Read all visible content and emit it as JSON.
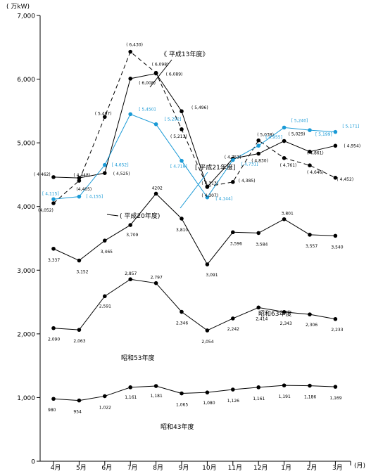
{
  "chart_data": {
    "type": "line",
    "unit_label": "( 万kW)",
    "x_unit": "(月)",
    "categories": [
      "4月",
      "5月",
      "6月",
      "7月",
      "8月",
      "9月",
      "10月",
      "11月",
      "12月",
      "1月",
      "2月",
      "3月"
    ],
    "ylim": [
      0,
      7000
    ],
    "yticks": [
      "0",
      "1,000",
      "2,000",
      "3,000",
      "4,000",
      "5,000",
      "6,000",
      "7,000"
    ],
    "series": [
      {
        "name": "《 平成13年度》",
        "color": "#000000",
        "dash": true,
        "values": [
          4052,
          4405,
          5407,
          6430,
          6098,
          5213,
          4313,
          4385,
          5038,
          4761,
          4646,
          4452
        ],
        "labels": [
          "(4,052)",
          "(4,405)",
          "( 5,407)",
          "( 6,430)",
          "( 6,098)",
          "( 5,213)",
          "( 4,313)",
          "( 4,385)",
          "( 5,038)",
          "( 4,761)",
          "( 4,646)",
          "( 4,452)"
        ]
      },
      {
        "name": "( 平成20年度)",
        "color": "#000000",
        "dash": false,
        "values": [
          4462,
          4448,
          4525,
          6008,
          6089,
          5496,
          4307,
          4753,
          4830,
          5029,
          4861,
          4954
        ],
        "labels": [
          "( 4,462)",
          "( 4,448)",
          "( 4,525)",
          "( 6,008)",
          "( 6,089)",
          "( 5,496)",
          "( 4,307)",
          "( 4,753)",
          "( 4,830)",
          "( 5,029)",
          "( 4,861)",
          "( 4,954)"
        ]
      },
      {
        "name": "[ 平成21年度]",
        "color": "#1a9ad6",
        "dash": false,
        "values": [
          4115,
          4155,
          4652,
          5450,
          5292,
          4718,
          4144,
          4731,
          4955,
          5240,
          5199,
          5171
        ],
        "labels": [
          "[ 4,115]",
          "[ 4,155]",
          "[ 4,652]",
          "[ 5,450]",
          "[ 5,292]",
          "[ 4,718]",
          "[ 4,144]",
          "[ 4,731]",
          "[ 4,955]",
          "[ 5,240]",
          "[ 5,199]",
          "[ 5,171]"
        ]
      },
      {
        "name": "昭和63年度",
        "color": "#000000",
        "dash": false,
        "values": [
          3337,
          3152,
          3465,
          3709,
          4202,
          3810,
          3091,
          3596,
          3584,
          3801,
          3557,
          3540
        ],
        "labels": [
          "3,337",
          "3,152",
          "3,465",
          "3,709",
          "4202",
          "3,810",
          "3,091",
          "3,596",
          "3,584",
          "3,801",
          "3,557",
          "3,540"
        ]
      },
      {
        "name": "昭和53年度",
        "color": "#000000",
        "dash": false,
        "values": [
          2090,
          2063,
          2591,
          2857,
          2797,
          2346,
          2054,
          2242,
          2414,
          2343,
          2306,
          2233
        ],
        "labels": [
          "2,090",
          "2,063",
          "2,591",
          "2,857",
          "2,797",
          "2,346",
          "2,054",
          "2,242",
          "2,414",
          "2,343",
          "2,306",
          "2,233"
        ]
      },
      {
        "name": "昭和43年度",
        "color": "#000000",
        "dash": false,
        "values": [
          980,
          954,
          1022,
          1161,
          1181,
          1065,
          1080,
          1126,
          1161,
          1191,
          1186,
          1169
        ],
        "labels": [
          "980",
          "954",
          "1,022",
          "1,161",
          "1,181",
          "1,065",
          "1,080",
          "1,126",
          "1,161",
          "1,191",
          "1,186",
          "1,169"
        ]
      }
    ]
  }
}
